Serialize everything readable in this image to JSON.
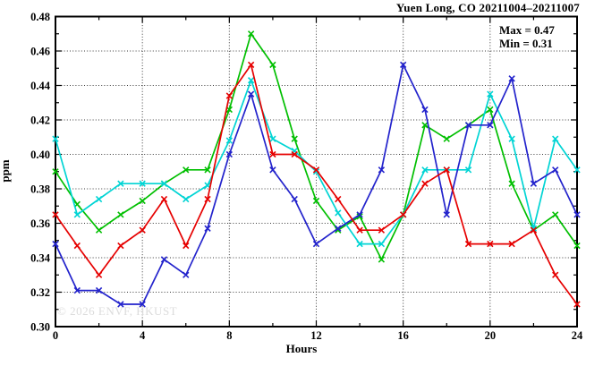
{
  "header": {
    "title": "Yuen Long, CO 20211004–20211007"
  },
  "annotation": {
    "max_label": "Max = 0.47",
    "min_label": "Min = 0.31"
  },
  "watermark": "© 2026 ENVF, HKUST",
  "chart_data": {
    "type": "line",
    "title": "Yuen Long, CO 20211004–20211007",
    "xlabel": "Hours",
    "ylabel": "ppm",
    "xlim": [
      0,
      24
    ],
    "ylim": [
      0.3,
      0.48
    ],
    "grid": "dotted black at major ticks",
    "legend": "none",
    "x_major_ticks": [
      0,
      4,
      8,
      12,
      16,
      20,
      24
    ],
    "x_minor_ticks": [
      2,
      6,
      10,
      14,
      18,
      22
    ],
    "y_major_ticks": [
      0.3,
      0.32,
      0.34,
      0.36,
      0.38,
      0.4,
      0.42,
      0.44,
      0.46,
      0.48
    ],
    "y_minor_ticks": [
      0.31,
      0.33,
      0.35,
      0.37,
      0.39,
      0.41,
      0.43,
      0.45,
      0.47
    ],
    "x_gridlines": [
      4,
      8,
      12,
      16,
      20
    ],
    "y_gridlines": [
      0.32,
      0.34,
      0.36,
      0.38,
      0.4,
      0.42,
      0.44,
      0.46
    ],
    "marker": "x-cross",
    "x": [
      0,
      1,
      2,
      3,
      4,
      5,
      6,
      7,
      8,
      9,
      10,
      11,
      12,
      13,
      14,
      15,
      16,
      17,
      18,
      19,
      20,
      21,
      22,
      23,
      24
    ],
    "series": [
      {
        "id": "green-line",
        "color": "#00bf00",
        "values": [
          0.39,
          0.371,
          0.356,
          0.365,
          0.373,
          0.383,
          0.391,
          0.391,
          0.426,
          0.47,
          0.452,
          0.409,
          0.373,
          0.356,
          0.364,
          0.339,
          0.365,
          0.417,
          0.409,
          0.417,
          0.426,
          0.383,
          0.356,
          0.365,
          0.347
        ]
      },
      {
        "id": "cyan-line",
        "color": "#00d4d4",
        "values": [
          0.409,
          0.365,
          0.374,
          0.383,
          0.383,
          0.383,
          0.374,
          0.382,
          0.408,
          0.443,
          0.409,
          0.402,
          0.39,
          0.366,
          0.348,
          0.348,
          0.365,
          0.391,
          0.391,
          0.391,
          0.435,
          0.409,
          0.357,
          0.409,
          0.391
        ]
      },
      {
        "id": "blue-line",
        "color": "#2323cc",
        "values": [
          0.348,
          0.321,
          0.321,
          0.313,
          0.313,
          0.339,
          0.33,
          0.357,
          0.4,
          0.435,
          0.391,
          0.374,
          0.348,
          0.357,
          0.365,
          0.391,
          0.452,
          0.426,
          0.365,
          0.417,
          0.417,
          0.444,
          0.383,
          0.391,
          0.365
        ]
      },
      {
        "id": "red-line",
        "color": "#e60000",
        "values": [
          0.365,
          0.347,
          0.33,
          0.347,
          0.356,
          0.374,
          0.347,
          0.374,
          0.434,
          0.452,
          0.4,
          0.4,
          0.391,
          0.374,
          0.356,
          0.356,
          0.365,
          0.383,
          0.391,
          0.348,
          0.348,
          0.348,
          0.356,
          0.33,
          0.313
        ]
      }
    ],
    "annotations": [
      "Max = 0.47",
      "Min = 0.31"
    ]
  }
}
